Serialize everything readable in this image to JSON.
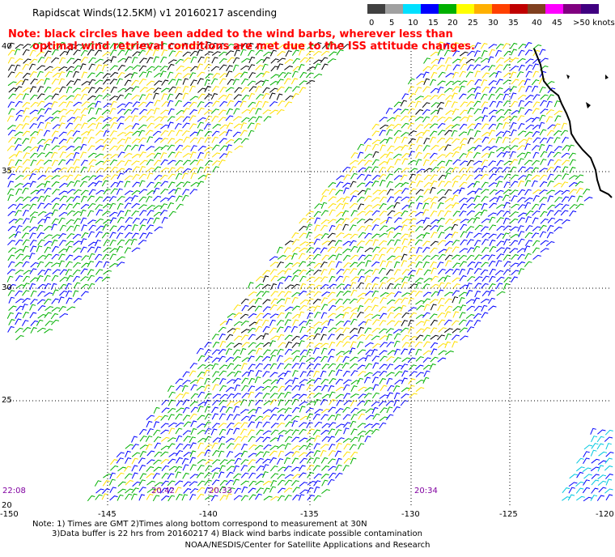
{
  "title": "Rapidscat Winds(12.5KM) v1 20160217 ascending",
  "note_line1": "Note: black circles have been added to the wind barbs, wherever less than",
  "note_line2": "optimal wind retrieval conditions are met due to the ISS attitude changes.",
  "legend": {
    "labels": [
      "0",
      "5",
      "10",
      "15",
      "20",
      "25",
      "30",
      "35",
      "40",
      "45",
      ">50 knots"
    ],
    "colors": [
      "#404040",
      "#a0a0a0",
      "#00e0ff",
      "#0000ff",
      "#00b000",
      "#ffff00",
      "#ffb000",
      "#ff4000",
      "#c00000",
      "#804020",
      "#ff00ff",
      "#800080",
      "#400080"
    ]
  },
  "axes": {
    "lon_labels": [
      "-150",
      "-145",
      "-140",
      "-135",
      "-130",
      "-125",
      "-120"
    ],
    "lat_labels": [
      "40",
      "35",
      "30",
      "25",
      "20"
    ]
  },
  "times": [
    "22:08",
    "20:42",
    "20:33",
    "20:34"
  ],
  "footer_line1": "Note: 1) Times are GMT 2)Times along bottom correspond to measurement at 30N",
  "footer_line2": "3)Data buffer is 22 hrs from 20160217 4) Black wind barbs indicate possible contamination",
  "credit": "NOAA/NESDIS/Center for Satellite Applications and Research"
}
